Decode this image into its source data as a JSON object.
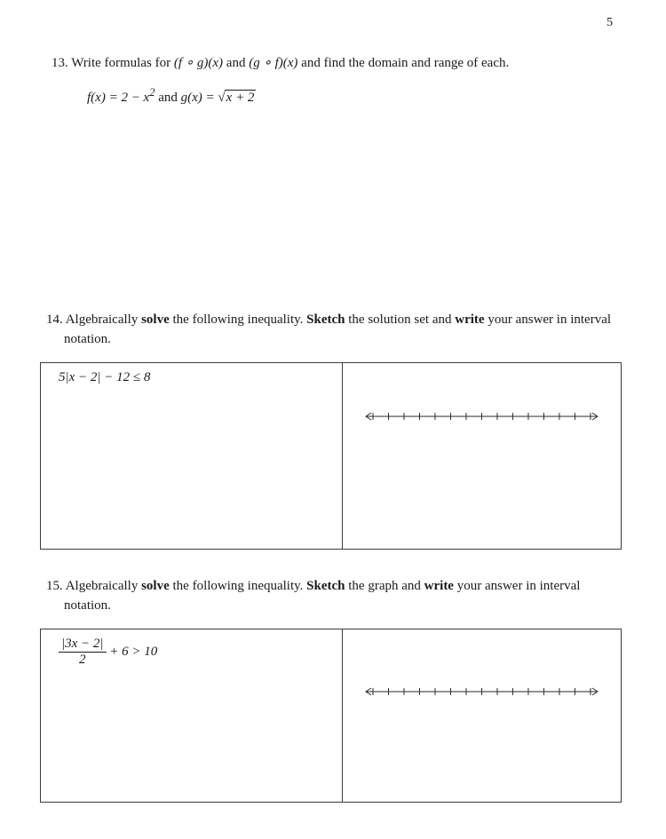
{
  "page_number": "5",
  "q13": {
    "number": "13.",
    "prompt_prefix": "Write formulas for ",
    "expr_fg": "(f ∘ g)(x)",
    "prompt_mid": " and ",
    "expr_gf": "(g ∘ f)(x)",
    "prompt_suffix": " and find the domain and range of each.",
    "f_label": "f(x) = 2 − x",
    "f_exp": "2",
    "and_text": " and ",
    "g_label": "g(x) = ",
    "sqrt_body": "x + 2"
  },
  "q14": {
    "number": "14.",
    "pre": "Algebraically ",
    "solve": "solve",
    "mid1": " the following inequality.  ",
    "sketch": "Sketch",
    "mid2": " the solution set and ",
    "write": "write",
    "post": " your answer in interval notation.",
    "inequality": "5|x − 2| − 12 ≤ 8"
  },
  "q15": {
    "number": "15.",
    "pre": "Algebraically ",
    "solve": "solve",
    "mid1": " the following inequality.  ",
    "sketch": "Sketch",
    "mid2": " the graph and ",
    "write": "write",
    "post": " your answer in interval notation.",
    "frac_num": "|3x − 2|",
    "frac_den": "2",
    "ineq_tail": " + 6 > 10"
  },
  "number_line": {
    "tick_count": 15,
    "stroke": "#2a2a2a",
    "stroke_width": 1
  }
}
